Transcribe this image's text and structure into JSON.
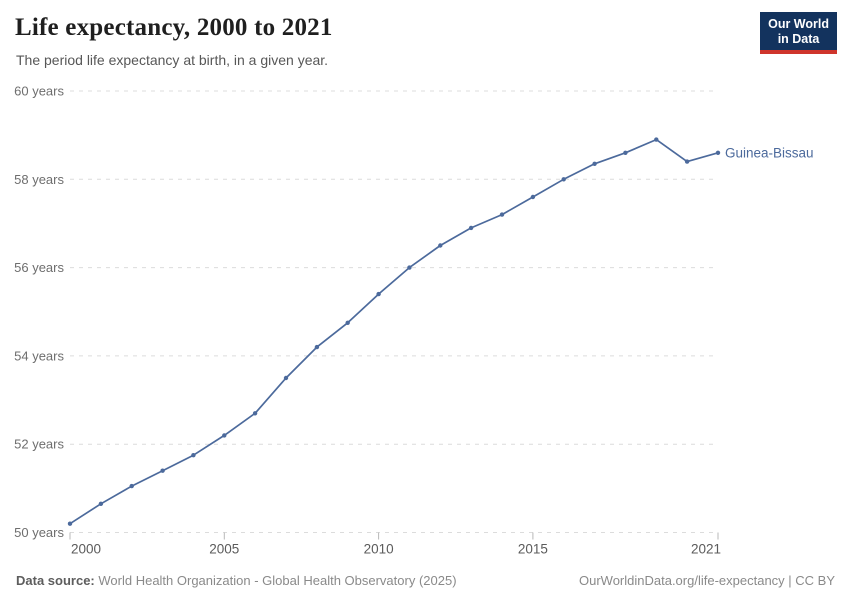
{
  "header": {
    "title": "Life expectancy, 2000 to 2021",
    "subtitle": "The period life expectancy at birth, in a given year."
  },
  "logo": {
    "line1": "Our World",
    "line2": "in Data",
    "bg_color": "#13335e",
    "accent_color": "#cf352c"
  },
  "footer": {
    "source_label": "Data source:",
    "source_text": "World Health Organization - Global Health Observatory (2025)",
    "credit": "OurWorldinData.org/life-expectancy | CC BY"
  },
  "chart_data": {
    "type": "line",
    "title": "Life expectancy, 2000 to 2021",
    "entity": "Guinea-Bissau",
    "xlabel": "",
    "ylabel": "",
    "x": [
      2000,
      2001,
      2002,
      2003,
      2004,
      2005,
      2006,
      2007,
      2008,
      2009,
      2010,
      2011,
      2012,
      2013,
      2014,
      2015,
      2016,
      2017,
      2018,
      2019,
      2020,
      2021
    ],
    "values": [
      50.2,
      50.65,
      51.05,
      51.4,
      51.75,
      52.2,
      52.7,
      53.5,
      54.2,
      54.75,
      55.4,
      56.0,
      56.5,
      56.9,
      57.2,
      57.6,
      58.0,
      58.35,
      58.6,
      58.9,
      58.4,
      58.6
    ],
    "xlim": [
      2000,
      2021
    ],
    "ylim": [
      50,
      60
    ],
    "yticks": [
      50,
      52,
      54,
      56,
      58,
      60
    ],
    "ytick_suffix": " years",
    "xticks": [
      2000,
      2005,
      2010,
      2015,
      2021
    ],
    "grid": "dashed",
    "legend_position": "end-of-line",
    "line_color": "#4c6a9c",
    "grid_color": "#dcdcdc",
    "axis_label_color": "#6e6e6e"
  }
}
